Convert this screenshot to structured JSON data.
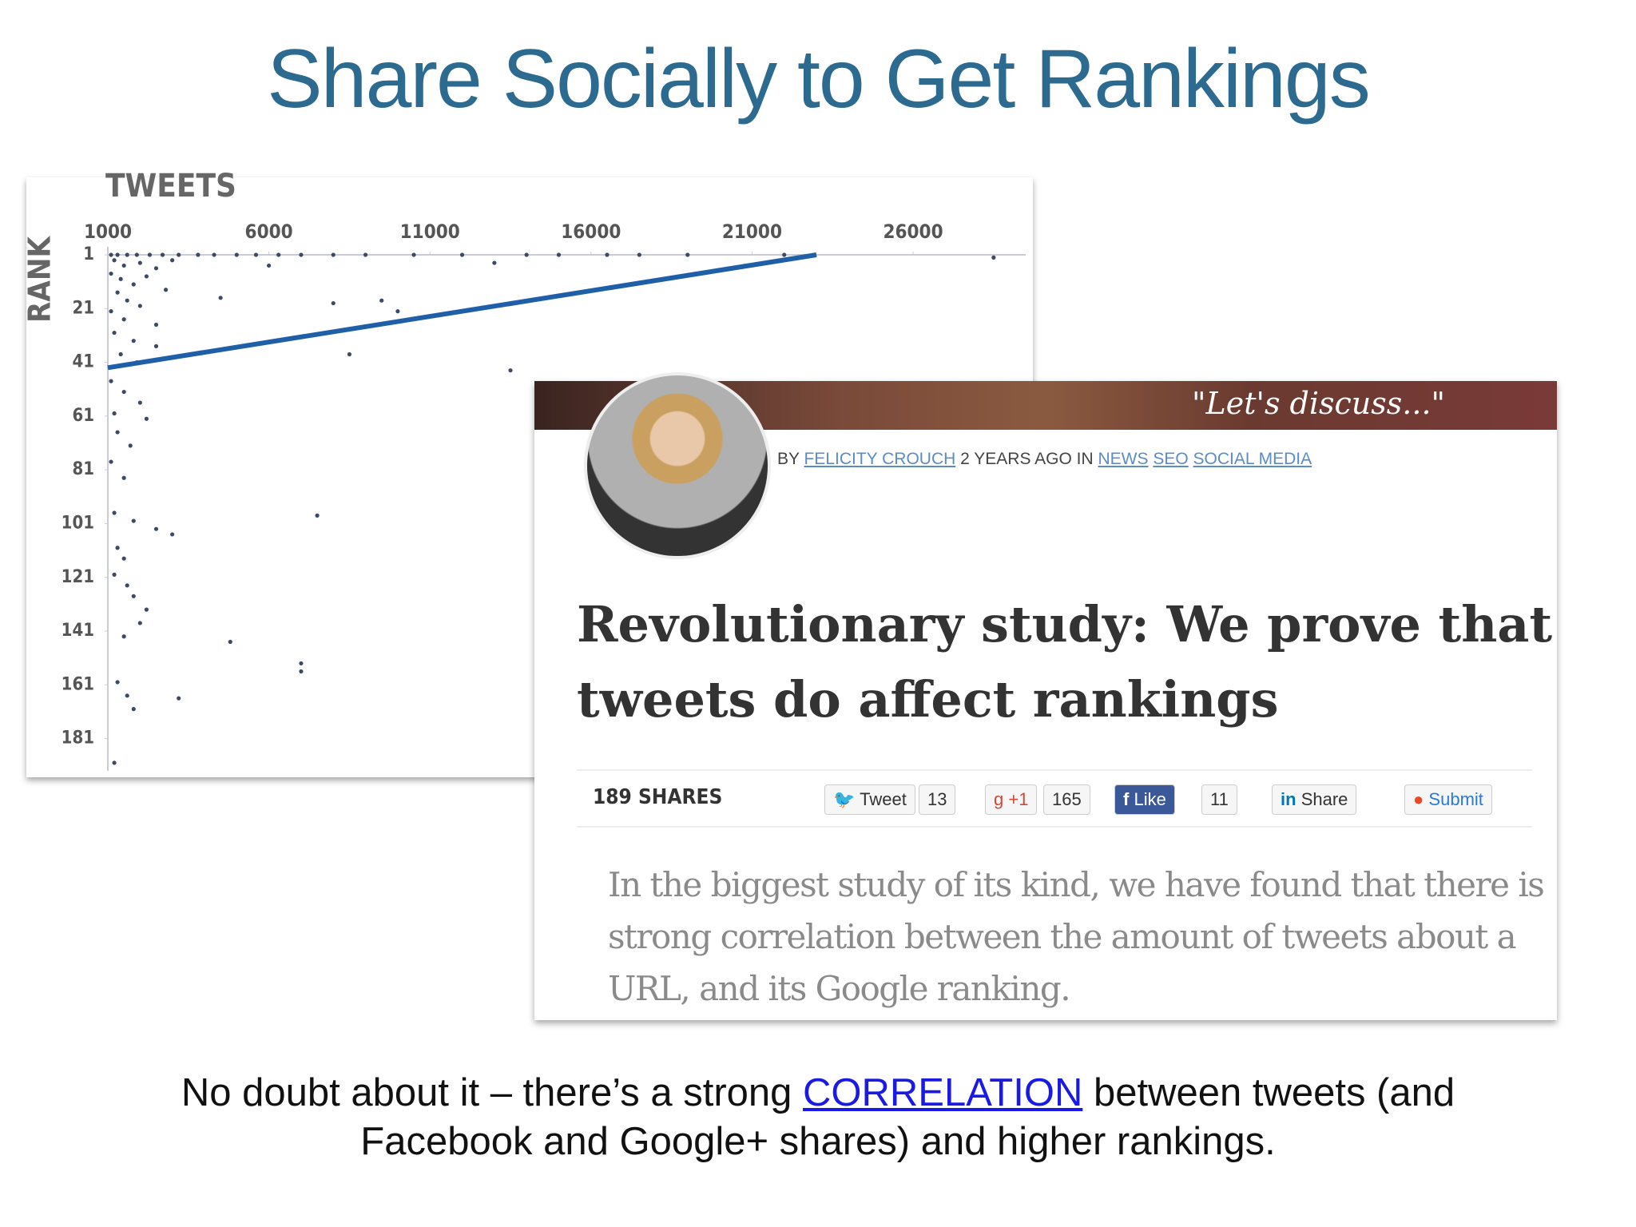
{
  "title": "Share Socially to Get Rankings",
  "chart_data": {
    "type": "scatter",
    "x_label": "TWEETS",
    "y_label": "RANK",
    "xlim": [
      1000,
      29000
    ],
    "ylim": [
      1,
      193
    ],
    "y_inverted": true,
    "xticks": [
      1000,
      6000,
      11000,
      16000,
      21000,
      26000
    ],
    "yticks": [
      1,
      21,
      41,
      61,
      81,
      101,
      121,
      141,
      161,
      181
    ],
    "color": "#3b4a66",
    "axis_color": "#c9ccd2",
    "x": [
      1100,
      1300,
      1600,
      1900,
      2300,
      2700,
      3200,
      3800,
      4300,
      5000,
      5600,
      6300,
      7000,
      8000,
      9000,
      10500,
      12000,
      14000,
      15000,
      16500,
      17500,
      19000,
      22000,
      28500,
      1200,
      1500,
      2000,
      2500,
      3000,
      1100,
      1400,
      1800,
      2200,
      1300,
      1600,
      2800,
      1100,
      1500,
      2000,
      2500,
      4500,
      6000,
      8000,
      9500,
      10000,
      13000,
      1200,
      1800,
      2500,
      1400,
      1900,
      8500,
      13500,
      1100,
      1500,
      2000,
      1200,
      2200,
      1300,
      1700,
      1100,
      1500,
      1200,
      1800,
      2500,
      3000,
      1300,
      1500,
      7500,
      1200,
      1600,
      1800,
      2200,
      2000,
      1500,
      4800,
      7000,
      7000,
      1300,
      1600,
      3200,
      1800,
      1200
    ],
    "y": [
      1,
      1,
      1,
      1,
      1,
      1,
      1,
      1,
      1,
      1,
      1,
      1,
      1,
      1,
      1,
      1,
      1,
      1,
      1,
      1,
      1,
      1,
      1,
      2,
      3,
      5,
      4,
      6,
      3,
      8,
      10,
      12,
      9,
      15,
      18,
      14,
      22,
      25,
      20,
      27,
      17,
      5,
      19,
      18,
      22,
      4,
      30,
      33,
      35,
      38,
      41,
      38,
      44,
      48,
      52,
      56,
      60,
      62,
      67,
      72,
      78,
      84,
      97,
      100,
      103,
      105,
      110,
      114,
      98,
      120,
      124,
      128,
      133,
      138,
      143,
      145,
      153,
      156,
      160,
      165,
      166,
      170,
      190
    ],
    "trend": {
      "color": "#1f5fa8",
      "x": [
        1000,
        23000
      ],
      "y": [
        43,
        1
      ]
    }
  },
  "article": {
    "banner": "\"Let's discuss...\"",
    "byline": {
      "by": "BY",
      "author": "FELICITY CROUCH",
      "when": "2 YEARS AGO IN",
      "tags": [
        "NEWS",
        "SEO",
        "SOCIAL MEDIA"
      ]
    },
    "headline": [
      "Revolutionary study: We prove that",
      "tweets do affect rankings"
    ],
    "shares": "189 SHARES",
    "buttons": [
      {
        "label": "Tweet",
        "count": "13"
      },
      {
        "label": "+1",
        "count": "165"
      },
      {
        "label": "Like",
        "count": "11"
      },
      {
        "label": "Share"
      },
      {
        "label": "Submit"
      }
    ],
    "body": [
      "In the biggest study of its kind, we have found that there is",
      "strong correlation between the amount of tweets about a",
      "URL, and its Google ranking."
    ]
  },
  "caption": {
    "before": "No doubt about it – there’s a strong ",
    "link": "CORRELATION",
    "after": " between tweets (and",
    "line2": "Facebook and Google+ shares) and higher rankings."
  }
}
